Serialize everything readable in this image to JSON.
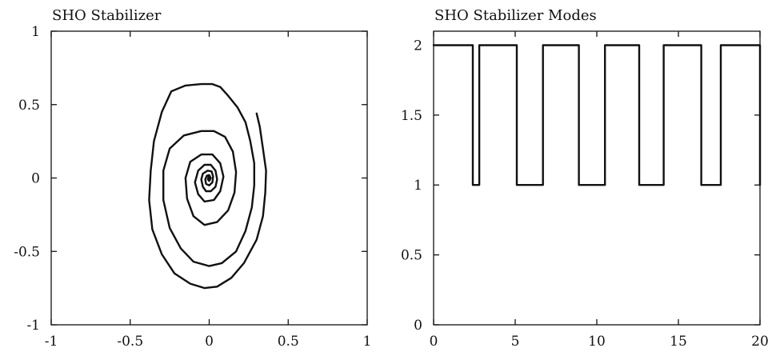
{
  "chart_data": [
    {
      "type": "line",
      "title": "SHO Stabilizer",
      "xlabel": "",
      "ylabel": "",
      "xlim": [
        -1,
        1
      ],
      "ylim": [
        -1,
        1
      ],
      "xticks": [
        -1,
        -0.5,
        0,
        0.5,
        1
      ],
      "yticks": [
        -1,
        -0.5,
        0,
        0.5,
        1
      ],
      "xtick_labels": [
        "-1",
        "-0.5",
        "0",
        "0.5",
        "1"
      ],
      "ytick_labels": [
        "-1",
        "-0.5",
        "0",
        "0.5",
        "1"
      ],
      "grid": false,
      "series": [
        {
          "points": [
            [
              0.3,
              0.44
            ],
            [
              0.32,
              0.35
            ],
            [
              0.34,
              0.2
            ],
            [
              0.36,
              0.05
            ],
            [
              0.355,
              -0.1
            ],
            [
              0.34,
              -0.26
            ],
            [
              0.3,
              -0.42
            ],
            [
              0.22,
              -0.58
            ],
            [
              0.14,
              -0.68
            ],
            [
              0.05,
              -0.74
            ],
            [
              -0.03,
              -0.75
            ],
            [
              -0.12,
              -0.72
            ],
            [
              -0.22,
              -0.65
            ],
            [
              -0.3,
              -0.52
            ],
            [
              -0.36,
              -0.35
            ],
            [
              -0.38,
              -0.15
            ],
            [
              -0.37,
              0.05
            ],
            [
              -0.35,
              0.25
            ],
            [
              -0.3,
              0.45
            ],
            [
              -0.24,
              0.59
            ],
            [
              -0.15,
              0.63
            ],
            [
              -0.05,
              0.64
            ],
            [
              0.02,
              0.64
            ],
            [
              0.07,
              0.62
            ],
            [
              0.12,
              0.56
            ],
            [
              0.18,
              0.48
            ],
            [
              0.23,
              0.38
            ],
            [
              0.26,
              0.25
            ],
            [
              0.285,
              0.1
            ],
            [
              0.285,
              -0.05
            ],
            [
              0.27,
              -0.2
            ],
            [
              0.23,
              -0.36
            ],
            [
              0.17,
              -0.5
            ],
            [
              0.08,
              -0.58
            ],
            [
              0.0,
              -0.6
            ],
            [
              -0.1,
              -0.57
            ],
            [
              -0.18,
              -0.48
            ],
            [
              -0.25,
              -0.34
            ],
            [
              -0.29,
              -0.15
            ],
            [
              -0.29,
              0.05
            ],
            [
              -0.25,
              0.2
            ],
            [
              -0.16,
              0.29
            ],
            [
              -0.05,
              0.32
            ],
            [
              0.03,
              0.32
            ],
            [
              0.1,
              0.28
            ],
            [
              0.15,
              0.18
            ],
            [
              0.17,
              0.04
            ],
            [
              0.16,
              -0.1
            ],
            [
              0.12,
              -0.22
            ],
            [
              0.05,
              -0.3
            ],
            [
              -0.03,
              -0.32
            ],
            [
              -0.1,
              -0.26
            ],
            [
              -0.14,
              -0.14
            ],
            [
              -0.15,
              0.0
            ],
            [
              -0.12,
              0.11
            ],
            [
              -0.05,
              0.16
            ],
            [
              0.02,
              0.16
            ],
            [
              0.07,
              0.1
            ],
            [
              0.09,
              0.01
            ],
            [
              0.07,
              -0.09
            ],
            [
              0.03,
              -0.15
            ],
            [
              -0.03,
              -0.16
            ],
            [
              -0.07,
              -0.11
            ],
            [
              -0.09,
              -0.03
            ],
            [
              -0.07,
              0.05
            ],
            [
              -0.03,
              0.09
            ],
            [
              0.01,
              0.09
            ],
            [
              0.04,
              0.05
            ],
            [
              0.05,
              -0.01
            ],
            [
              0.04,
              -0.06
            ],
            [
              0.01,
              -0.09
            ],
            [
              -0.02,
              -0.09
            ],
            [
              -0.04,
              -0.06
            ],
            [
              -0.05,
              -0.01
            ],
            [
              -0.04,
              0.03
            ],
            [
              -0.01,
              0.05
            ],
            [
              0.015,
              0.045
            ],
            [
              0.025,
              0.01
            ],
            [
              0.02,
              -0.03
            ],
            [
              0.0,
              -0.05
            ],
            [
              -0.02,
              -0.04
            ],
            [
              -0.025,
              -0.01
            ],
            [
              -0.015,
              0.015
            ],
            [
              0.0,
              0.02
            ],
            [
              0.01,
              0.0
            ],
            [
              0.0,
              -0.02
            ],
            [
              -0.008,
              -0.01
            ],
            [
              -0.005,
              0.005
            ],
            [
              0.0,
              0.0
            ]
          ]
        }
      ]
    },
    {
      "type": "line",
      "title": "SHO Stabilizer Modes",
      "xlabel": "",
      "ylabel": "",
      "xlim": [
        0,
        20
      ],
      "ylim": [
        0,
        2.1
      ],
      "xticks": [
        0,
        5,
        10,
        15,
        20
      ],
      "yticks": [
        0,
        0.5,
        1,
        1.5,
        2
      ],
      "xtick_labels": [
        "0",
        "5",
        "10",
        "15",
        "20"
      ],
      "ytick_labels": [
        "0",
        "0.5",
        "1",
        "1.5",
        "2"
      ],
      "grid": false,
      "step": true,
      "series": [
        {
          "x": [
            0,
            2.4,
            2.4,
            2.8,
            2.8,
            5.1,
            5.1,
            6.7,
            6.7,
            8.9,
            8.9,
            10.5,
            10.5,
            12.6,
            12.6,
            14.1,
            14.1,
            16.4,
            16.4,
            17.6,
            17.6,
            20,
            20
          ],
          "y": [
            2,
            2,
            1,
            1,
            2,
            2,
            1,
            1,
            2,
            2,
            1,
            1,
            2,
            2,
            1,
            1,
            2,
            2,
            1,
            1,
            2,
            2,
            1
          ]
        }
      ]
    }
  ]
}
